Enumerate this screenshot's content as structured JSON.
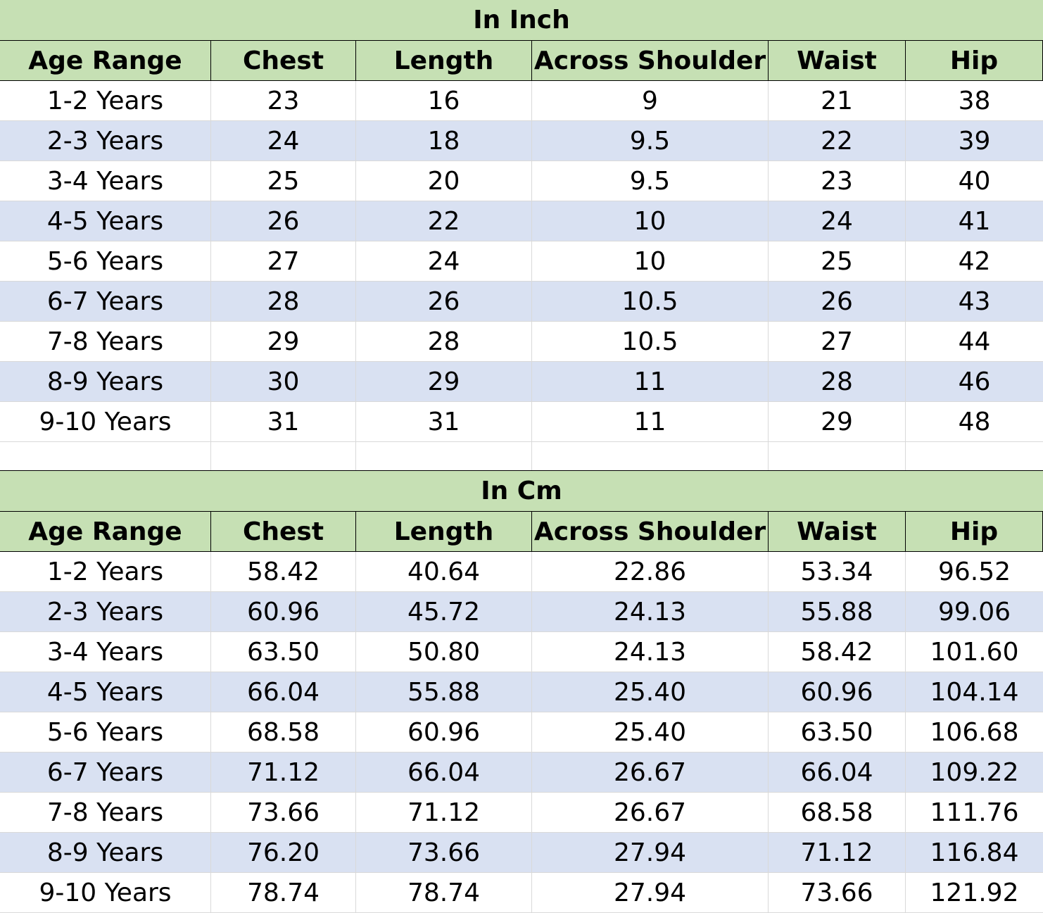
{
  "inch_table": {
    "title": "In Inch",
    "headers": [
      "Age Range",
      "Chest",
      "Length",
      "Across Shoulder",
      "Waist",
      "Hip"
    ],
    "rows": [
      [
        "1-2 Years",
        "23",
        "16",
        "9",
        "21",
        "38"
      ],
      [
        "2-3 Years",
        "24",
        "18",
        "9.5",
        "22",
        "39"
      ],
      [
        "3-4 Years",
        "25",
        "20",
        "9.5",
        "23",
        "40"
      ],
      [
        "4-5 Years",
        "26",
        "22",
        "10",
        "24",
        "41"
      ],
      [
        "5-6 Years",
        "27",
        "24",
        "10",
        "25",
        "42"
      ],
      [
        "6-7 Years",
        "28",
        "26",
        "10.5",
        "26",
        "43"
      ],
      [
        "7-8 Years",
        "29",
        "28",
        "10.5",
        "27",
        "44"
      ],
      [
        "8-9 Years",
        "30",
        "29",
        "11",
        "28",
        "46"
      ],
      [
        "9-10 Years",
        "31",
        "31",
        "11",
        "29",
        "48"
      ]
    ]
  },
  "cm_table": {
    "title": "In Cm",
    "headers": [
      "Age Range",
      "Chest",
      "Length",
      "Across Shoulder",
      "Waist",
      "Hip"
    ],
    "rows": [
      [
        "1-2 Years",
        "58.42",
        "40.64",
        "22.86",
        "53.34",
        "96.52"
      ],
      [
        "2-3 Years",
        "60.96",
        "45.72",
        "24.13",
        "55.88",
        "99.06"
      ],
      [
        "3-4 Years",
        "63.50",
        "50.80",
        "24.13",
        "58.42",
        "101.60"
      ],
      [
        "4-5 Years",
        "66.04",
        "55.88",
        "25.40",
        "60.96",
        "104.14"
      ],
      [
        "5-6 Years",
        "68.58",
        "60.96",
        "25.40",
        "63.50",
        "106.68"
      ],
      [
        "6-7 Years",
        "71.12",
        "66.04",
        "26.67",
        "66.04",
        "109.22"
      ],
      [
        "7-8 Years",
        "73.66",
        "71.12",
        "26.67",
        "68.58",
        "111.76"
      ],
      [
        "8-9 Years",
        "76.20",
        "73.66",
        "27.94",
        "71.12",
        "116.84"
      ],
      [
        "9-10 Years",
        "78.74",
        "78.74",
        "27.94",
        "73.66",
        "121.92"
      ]
    ]
  },
  "colors": {
    "header_fill": "#c6e0b4",
    "band_fill": "#d9e1f2",
    "plain_fill": "#ffffff",
    "grid_line": "#d9d9d9",
    "header_border": "#000000"
  }
}
